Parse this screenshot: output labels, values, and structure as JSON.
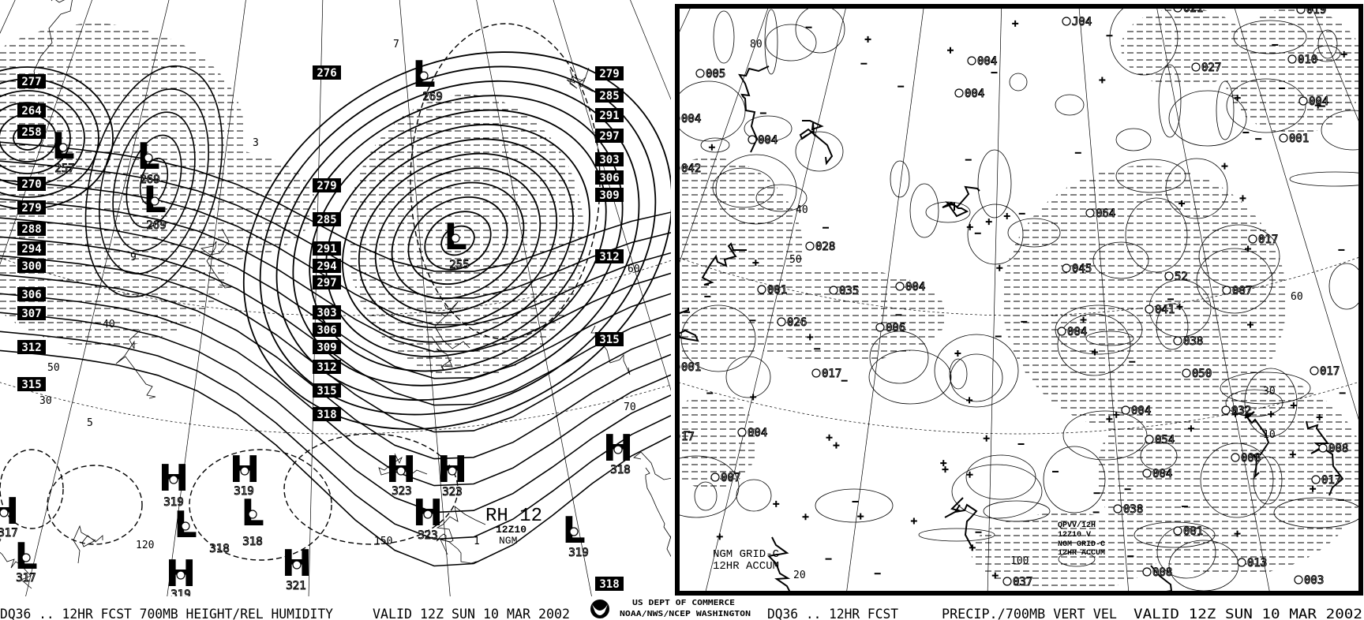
{
  "left_panel": {
    "caption": "DQ36 .. 12HR FCST 700MB HEIGHT/REL HUMIDITY",
    "valid": "VALID 12Z SUN 10 MAR 2002",
    "height_labels_west": [
      "277",
      "264",
      "258",
      "270",
      "279",
      "288",
      "294",
      "300",
      "306",
      "307",
      "312",
      "315"
    ],
    "height_labels_central": [
      "276",
      "279",
      "285",
      "291",
      "294",
      "297",
      "303",
      "306",
      "309",
      "312",
      "315",
      "318"
    ],
    "height_labels_east": [
      "279",
      "285",
      "291",
      "297",
      "303",
      "306",
      "309",
      "312",
      "315",
      "318"
    ],
    "centers": [
      {
        "type": "L",
        "value": "257"
      },
      {
        "type": "L",
        "value": "269"
      },
      {
        "type": "L",
        "value": "269"
      },
      {
        "type": "L",
        "value": "269"
      },
      {
        "type": "L",
        "value": "255"
      },
      {
        "type": "H",
        "value": "319"
      },
      {
        "type": "H",
        "value": "319"
      },
      {
        "type": "L",
        "value": "318"
      },
      {
        "type": "L",
        "value": "318"
      },
      {
        "type": "H",
        "value": "319"
      },
      {
        "type": "H",
        "value": "321"
      },
      {
        "type": "H",
        "value": "323"
      },
      {
        "type": "H",
        "value": "323"
      },
      {
        "type": "H",
        "value": "323"
      },
      {
        "type": "L",
        "value": "319"
      },
      {
        "type": "H",
        "value": "318"
      },
      {
        "type": "L",
        "value": "317"
      },
      {
        "type": "H",
        "value": "317"
      }
    ],
    "rh_label": "RH 12",
    "run": "12Z10",
    "model": "NGM",
    "contour_labels": [
      "120",
      "150",
      "70",
      "60",
      "50",
      "40",
      "30",
      "5",
      "9",
      "7",
      "3",
      "1"
    ]
  },
  "agency": {
    "line1": "US DEPT OF COMMERCE",
    "line2": "NOAA/NWS/NCEP WASHINGTON",
    "logo": "noaa-logo"
  },
  "right_panel": {
    "caption": "DQ36 .. 12HR FCST",
    "title": "PRECIP./700MB VERT VEL",
    "valid": "VALID 12Z SUN 10 MAR 2002",
    "grid_label": [
      "NGM GRID-C",
      "12HR ACCUM"
    ],
    "inset_label": [
      "QPVV/12H",
      "12Z10 V",
      "NGM GRID-C",
      "12HR ACCUM"
    ],
    "precip_values": [
      "005",
      "004",
      "004",
      "042",
      "004",
      "004",
      "J04",
      "021",
      "019",
      "027",
      "010",
      "004",
      "001",
      "064",
      "017",
      "028",
      "045",
      "52",
      "001",
      "035",
      "004",
      "007",
      "041",
      "026",
      "006",
      "004",
      "038",
      "001",
      "017",
      "050",
      "017",
      "004",
      "032",
      "004",
      "17",
      "054",
      "008",
      "008",
      "007",
      "004",
      "017",
      "038",
      "001",
      "013",
      "008",
      "037",
      "003"
    ],
    "contour_labels": [
      "80",
      "50",
      "40",
      "60",
      "30",
      "20",
      "100",
      "10"
    ]
  },
  "colors": {
    "ink": "#000000",
    "background": "#ffffff"
  }
}
